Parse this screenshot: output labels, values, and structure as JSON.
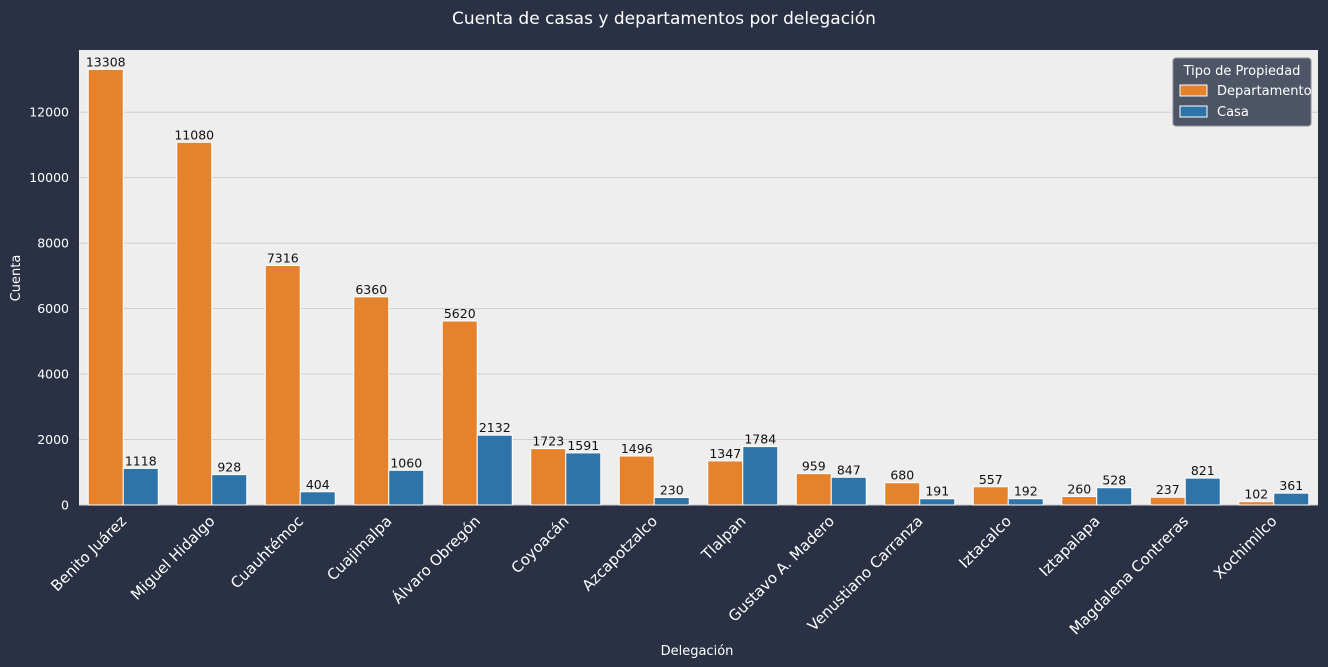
{
  "chart_data": {
    "type": "bar",
    "title": "Cuenta de casas y departamentos por delegación",
    "xlabel": "Delegación",
    "ylabel": "Cuenta",
    "ylim": [
      0,
      13900
    ],
    "yticks": [
      0,
      2000,
      4000,
      6000,
      8000,
      10000,
      12000
    ],
    "grid": true,
    "legend": {
      "title": "Tipo de Propiedad",
      "position": "top-right"
    },
    "categories": [
      "Benito Juárez",
      "Miguel Hidalgo",
      "Cuauhtémoc",
      "Cuajimalpa",
      "Álvaro Obregón",
      "Coyoacán",
      "Azcapotzalco",
      "Tlalpan",
      "Gustavo A. Madero",
      "Venustiano Carranza",
      "Iztacalco",
      "Iztapalapa",
      "Magdalena Contreras",
      "Xochimilco"
    ],
    "series": [
      {
        "name": "Departamento",
        "color": "#e6822b",
        "values": [
          13308,
          11080,
          7316,
          6360,
          5620,
          1723,
          1496,
          1347,
          959,
          680,
          557,
          260,
          237,
          102
        ]
      },
      {
        "name": "Casa",
        "color": "#2e74a8",
        "values": [
          1118,
          928,
          404,
          1060,
          2132,
          1591,
          230,
          1784,
          847,
          191,
          192,
          528,
          821,
          361
        ]
      }
    ],
    "colors": {
      "background": "#2b3144",
      "plot_background": "#eeeeee",
      "grid": "#cfcfcf",
      "text": "#ffffff"
    }
  }
}
